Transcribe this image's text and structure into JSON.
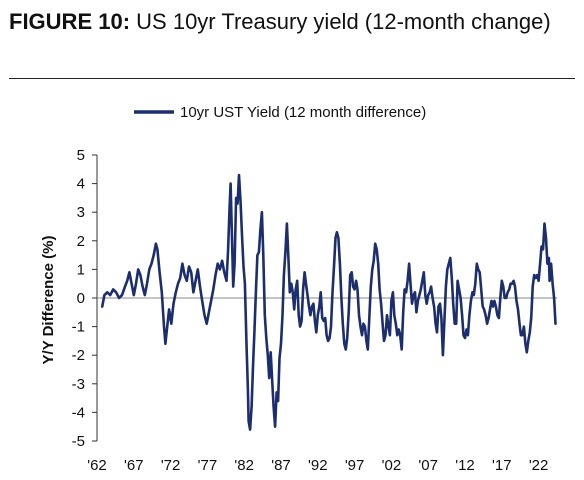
{
  "header": {
    "label": "FIGURE 10:",
    "title": "US 10yr Treasury yield (12-month change)"
  },
  "chart_data": {
    "type": "line",
    "ylabel": "Y/Y Difference (%)",
    "xlabel": "",
    "xlim": [
      1962,
      2024.5
    ],
    "ylim": [
      -5,
      5
    ],
    "y_ticks": [
      5,
      4,
      3,
      2,
      1,
      0,
      -1,
      -2,
      -3,
      -4,
      -5
    ],
    "x_ticks": [
      {
        "label": "'62",
        "year": 1962
      },
      {
        "label": "'67",
        "year": 1967
      },
      {
        "label": "'72",
        "year": 1972
      },
      {
        "label": "'77",
        "year": 1977
      },
      {
        "label": "'82",
        "year": 1982
      },
      {
        "label": "'87",
        "year": 1987
      },
      {
        "label": "'92",
        "year": 1992
      },
      {
        "label": "'97",
        "year": 1997
      },
      {
        "label": "'02",
        "year": 2002
      },
      {
        "label": "'07",
        "year": 2007
      },
      {
        "label": "'12",
        "year": 2012
      },
      {
        "label": "'17",
        "year": 2017
      },
      {
        "label": "'22",
        "year": 2022
      }
    ],
    "zero_line": true,
    "grid": false,
    "legend_position": "top-center",
    "series": [
      {
        "name": "10yr UST Yield (12 month difference)",
        "color": "#1c2e6e",
        "points": [
          [
            1962.7,
            -0.3
          ],
          [
            1963.0,
            0.1
          ],
          [
            1963.4,
            0.2
          ],
          [
            1963.8,
            0.1
          ],
          [
            1964.2,
            0.3
          ],
          [
            1964.6,
            0.2
          ],
          [
            1965.0,
            0.0
          ],
          [
            1965.4,
            0.1
          ],
          [
            1965.8,
            0.4
          ],
          [
            1966.1,
            0.6
          ],
          [
            1966.4,
            0.9
          ],
          [
            1966.7,
            0.5
          ],
          [
            1967.0,
            0.1
          ],
          [
            1967.3,
            0.5
          ],
          [
            1967.6,
            1.0
          ],
          [
            1967.9,
            0.8
          ],
          [
            1968.2,
            0.4
          ],
          [
            1968.5,
            0.1
          ],
          [
            1968.8,
            0.5
          ],
          [
            1969.1,
            1.0
          ],
          [
            1969.4,
            1.2
          ],
          [
            1969.7,
            1.5
          ],
          [
            1970.0,
            1.9
          ],
          [
            1970.2,
            1.7
          ],
          [
            1970.5,
            0.9
          ],
          [
            1970.8,
            0.2
          ],
          [
            1971.1,
            -1.0
          ],
          [
            1971.3,
            -1.6
          ],
          [
            1971.5,
            -1.1
          ],
          [
            1971.8,
            -0.4
          ],
          [
            1972.1,
            -0.9
          ],
          [
            1972.4,
            -0.2
          ],
          [
            1972.7,
            0.2
          ],
          [
            1973.0,
            0.5
          ],
          [
            1973.3,
            0.7
          ],
          [
            1973.6,
            1.2
          ],
          [
            1973.9,
            0.8
          ],
          [
            1974.2,
            0.6
          ],
          [
            1974.5,
            1.1
          ],
          [
            1974.8,
            0.9
          ],
          [
            1975.1,
            0.2
          ],
          [
            1975.4,
            0.6
          ],
          [
            1975.7,
            1.0
          ],
          [
            1976.0,
            0.4
          ],
          [
            1976.3,
            -0.1
          ],
          [
            1976.6,
            -0.6
          ],
          [
            1976.9,
            -0.9
          ],
          [
            1977.2,
            -0.5
          ],
          [
            1977.5,
            -0.1
          ],
          [
            1977.8,
            0.3
          ],
          [
            1978.1,
            0.8
          ],
          [
            1978.4,
            1.2
          ],
          [
            1978.7,
            1.0
          ],
          [
            1979.0,
            1.3
          ],
          [
            1979.3,
            0.9
          ],
          [
            1979.6,
            0.6
          ],
          [
            1979.8,
            1.6
          ],
          [
            1980.0,
            3.1
          ],
          [
            1980.15,
            4.0
          ],
          [
            1980.3,
            2.5
          ],
          [
            1980.5,
            0.4
          ],
          [
            1980.7,
            1.2
          ],
          [
            1980.9,
            3.5
          ],
          [
            1981.1,
            3.3
          ],
          [
            1981.3,
            4.3
          ],
          [
            1981.5,
            3.4
          ],
          [
            1981.7,
            2.2
          ],
          [
            1981.9,
            1.1
          ],
          [
            1982.1,
            0.5
          ],
          [
            1982.3,
            -1.5
          ],
          [
            1982.5,
            -3.2
          ],
          [
            1982.6,
            -4.3
          ],
          [
            1982.8,
            -4.6
          ],
          [
            1983.0,
            -3.8
          ],
          [
            1983.2,
            -2.4
          ],
          [
            1983.4,
            -1.1
          ],
          [
            1983.6,
            0.3
          ],
          [
            1983.8,
            1.5
          ],
          [
            1984.0,
            1.6
          ],
          [
            1984.2,
            2.4
          ],
          [
            1984.4,
            3.0
          ],
          [
            1984.6,
            1.5
          ],
          [
            1984.8,
            -0.6
          ],
          [
            1985.0,
            -1.4
          ],
          [
            1985.2,
            -2.0
          ],
          [
            1985.4,
            -2.8
          ],
          [
            1985.6,
            -1.9
          ],
          [
            1985.8,
            -2.9
          ],
          [
            1986.0,
            -3.8
          ],
          [
            1986.2,
            -4.5
          ],
          [
            1986.4,
            -3.3
          ],
          [
            1986.6,
            -3.6
          ],
          [
            1986.8,
            -2.1
          ],
          [
            1987.0,
            -1.6
          ],
          [
            1987.2,
            -0.6
          ],
          [
            1987.4,
            0.8
          ],
          [
            1987.6,
            1.6
          ],
          [
            1987.8,
            2.6
          ],
          [
            1988.0,
            1.4
          ],
          [
            1988.2,
            0.2
          ],
          [
            1988.4,
            0.5
          ],
          [
            1988.6,
            0.2
          ],
          [
            1988.8,
            -0.4
          ],
          [
            1989.0,
            0.3
          ],
          [
            1989.2,
            0.6
          ],
          [
            1989.4,
            -0.6
          ],
          [
            1989.6,
            -1.0
          ],
          [
            1989.8,
            -0.8
          ],
          [
            1990.0,
            0.3
          ],
          [
            1990.2,
            0.9
          ],
          [
            1990.4,
            0.5
          ],
          [
            1990.6,
            0.1
          ],
          [
            1990.8,
            -0.3
          ],
          [
            1991.0,
            -0.6
          ],
          [
            1991.2,
            -0.3
          ],
          [
            1991.4,
            -0.2
          ],
          [
            1991.6,
            -0.8
          ],
          [
            1991.8,
            -1.2
          ],
          [
            1992.0,
            -0.6
          ],
          [
            1992.2,
            -0.3
          ],
          [
            1992.4,
            0.2
          ],
          [
            1992.6,
            -0.7
          ],
          [
            1992.8,
            -0.8
          ],
          [
            1993.0,
            -0.7
          ],
          [
            1993.2,
            -1.3
          ],
          [
            1993.4,
            -1.5
          ],
          [
            1993.6,
            -1.4
          ],
          [
            1993.8,
            -1.0
          ],
          [
            1994.0,
            0.2
          ],
          [
            1994.2,
            1.1
          ],
          [
            1994.4,
            2.1
          ],
          [
            1994.6,
            2.3
          ],
          [
            1994.8,
            2.1
          ],
          [
            1995.0,
            1.2
          ],
          [
            1995.2,
            0.0
          ],
          [
            1995.4,
            -0.9
          ],
          [
            1995.6,
            -1.6
          ],
          [
            1995.8,
            -1.8
          ],
          [
            1996.0,
            -1.4
          ],
          [
            1996.2,
            -0.5
          ],
          [
            1996.4,
            0.8
          ],
          [
            1996.6,
            0.9
          ],
          [
            1996.8,
            0.4
          ],
          [
            1997.0,
            0.3
          ],
          [
            1997.2,
            0.6
          ],
          [
            1997.4,
            0.3
          ],
          [
            1997.6,
            -0.6
          ],
          [
            1997.8,
            -1.0
          ],
          [
            1998.0,
            -1.3
          ],
          [
            1998.2,
            -0.9
          ],
          [
            1998.4,
            -1.0
          ],
          [
            1998.6,
            -1.5
          ],
          [
            1998.8,
            -1.8
          ],
          [
            1999.0,
            -0.7
          ],
          [
            1999.2,
            0.4
          ],
          [
            1999.4,
            1.0
          ],
          [
            1999.6,
            1.3
          ],
          [
            1999.8,
            1.9
          ],
          [
            2000.0,
            1.7
          ],
          [
            2000.2,
            1.2
          ],
          [
            2000.4,
            0.3
          ],
          [
            2000.6,
            -0.2
          ],
          [
            2000.8,
            -0.9
          ],
          [
            2001.0,
            -1.5
          ],
          [
            2001.2,
            -1.3
          ],
          [
            2001.4,
            -0.6
          ],
          [
            2001.6,
            -1.0
          ],
          [
            2001.8,
            -1.3
          ],
          [
            2002.0,
            -0.1
          ],
          [
            2002.2,
            0.2
          ],
          [
            2002.4,
            -0.6
          ],
          [
            2002.6,
            -0.9
          ],
          [
            2002.8,
            -1.3
          ],
          [
            2003.0,
            -1.1
          ],
          [
            2003.2,
            -1.3
          ],
          [
            2003.4,
            -1.8
          ],
          [
            2003.6,
            -0.5
          ],
          [
            2003.8,
            0.3
          ],
          [
            2004.0,
            0.2
          ],
          [
            2004.2,
            0.6
          ],
          [
            2004.4,
            1.2
          ],
          [
            2004.6,
            0.5
          ],
          [
            2004.8,
            -0.2
          ],
          [
            2005.0,
            0.1
          ],
          [
            2005.2,
            0.2
          ],
          [
            2005.4,
            -0.5
          ],
          [
            2005.6,
            -0.1
          ],
          [
            2005.8,
            0.1
          ],
          [
            2006.0,
            0.3
          ],
          [
            2006.2,
            0.6
          ],
          [
            2006.4,
            0.9
          ],
          [
            2006.6,
            0.1
          ],
          [
            2006.8,
            -0.2
          ],
          [
            2007.0,
            0.1
          ],
          [
            2007.2,
            0.2
          ],
          [
            2007.4,
            0.4
          ],
          [
            2007.6,
            0.0
          ],
          [
            2007.8,
            -0.3
          ],
          [
            2008.0,
            -0.9
          ],
          [
            2008.2,
            -1.2
          ],
          [
            2008.4,
            -0.3
          ],
          [
            2008.6,
            -0.2
          ],
          [
            2008.8,
            -0.7
          ],
          [
            2009.0,
            -2.0
          ],
          [
            2009.2,
            -0.8
          ],
          [
            2009.4,
            0.4
          ],
          [
            2009.6,
            1.0
          ],
          [
            2009.8,
            1.2
          ],
          [
            2010.0,
            1.4
          ],
          [
            2010.2,
            0.7
          ],
          [
            2010.4,
            -0.2
          ],
          [
            2010.6,
            -0.9
          ],
          [
            2010.8,
            -0.9
          ],
          [
            2011.0,
            0.6
          ],
          [
            2011.2,
            0.3
          ],
          [
            2011.4,
            0.0
          ],
          [
            2011.6,
            -0.6
          ],
          [
            2011.8,
            -1.3
          ],
          [
            2012.0,
            -1.4
          ],
          [
            2012.2,
            -1.1
          ],
          [
            2012.4,
            -1.3
          ],
          [
            2012.6,
            -0.6
          ],
          [
            2012.8,
            -0.1
          ],
          [
            2013.0,
            0.2
          ],
          [
            2013.2,
            0.1
          ],
          [
            2013.4,
            0.5
          ],
          [
            2013.6,
            1.2
          ],
          [
            2013.8,
            1.0
          ],
          [
            2014.0,
            0.9
          ],
          [
            2014.2,
            0.3
          ],
          [
            2014.4,
            -0.3
          ],
          [
            2014.6,
            -0.4
          ],
          [
            2014.8,
            -0.6
          ],
          [
            2015.0,
            -0.9
          ],
          [
            2015.2,
            -0.7
          ],
          [
            2015.4,
            -0.4
          ],
          [
            2015.6,
            -0.1
          ],
          [
            2015.8,
            -0.3
          ],
          [
            2016.0,
            -0.1
          ],
          [
            2016.2,
            -0.3
          ],
          [
            2016.4,
            -0.6
          ],
          [
            2016.6,
            -0.7
          ],
          [
            2016.8,
            0.0
          ],
          [
            2017.0,
            0.6
          ],
          [
            2017.2,
            0.4
          ],
          [
            2017.4,
            0.0
          ],
          [
            2017.6,
            0.0
          ],
          [
            2017.8,
            0.2
          ],
          [
            2018.0,
            0.3
          ],
          [
            2018.2,
            0.5
          ],
          [
            2018.4,
            0.5
          ],
          [
            2018.6,
            0.6
          ],
          [
            2018.8,
            0.4
          ],
          [
            2019.0,
            -0.1
          ],
          [
            2019.2,
            -0.4
          ],
          [
            2019.4,
            -0.9
          ],
          [
            2019.6,
            -1.3
          ],
          [
            2019.8,
            -1.3
          ],
          [
            2020.0,
            -1.0
          ],
          [
            2020.2,
            -1.6
          ],
          [
            2020.4,
            -1.9
          ],
          [
            2020.6,
            -1.5
          ],
          [
            2020.8,
            -1.2
          ],
          [
            2021.0,
            -0.7
          ],
          [
            2021.2,
            0.4
          ],
          [
            2021.4,
            0.8
          ],
          [
            2021.6,
            0.7
          ],
          [
            2021.8,
            0.8
          ],
          [
            2022.0,
            0.6
          ],
          [
            2022.2,
            1.2
          ],
          [
            2022.4,
            1.8
          ],
          [
            2022.6,
            1.7
          ],
          [
            2022.8,
            2.6
          ],
          [
            2023.0,
            2.1
          ],
          [
            2023.2,
            1.2
          ],
          [
            2023.4,
            1.4
          ],
          [
            2023.5,
            0.6
          ],
          [
            2023.7,
            1.2
          ],
          [
            2023.9,
            0.5
          ],
          [
            2024.1,
            0.0
          ],
          [
            2024.3,
            -0.9
          ]
        ]
      }
    ]
  }
}
